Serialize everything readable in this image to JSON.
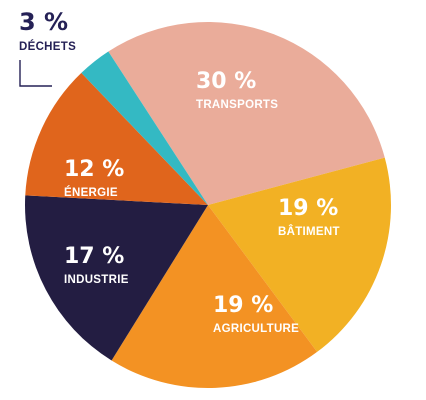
{
  "chart_data": {
    "type": "pie",
    "slices": [
      {
        "label": "TRANSPORTS",
        "value": 30,
        "value_label": "30 %",
        "color": "#eaac9a"
      },
      {
        "label": "BÂTIMENT",
        "value": 19,
        "value_label": "19 %",
        "color": "#f2b124"
      },
      {
        "label": "AGRICULTURE",
        "value": 19,
        "value_label": "19 %",
        "color": "#f39223"
      },
      {
        "label": "INDUSTRIE",
        "value": 17,
        "value_label": "17 %",
        "color": "#231d42"
      },
      {
        "label": "ÉNERGIE",
        "value": 12,
        "value_label": "12 %",
        "color": "#e0651c"
      },
      {
        "label": "DÉCHETS",
        "value": 3,
        "value_label": "3 %",
        "color": "#34b9c3"
      }
    ]
  },
  "leader_color": "#252156"
}
